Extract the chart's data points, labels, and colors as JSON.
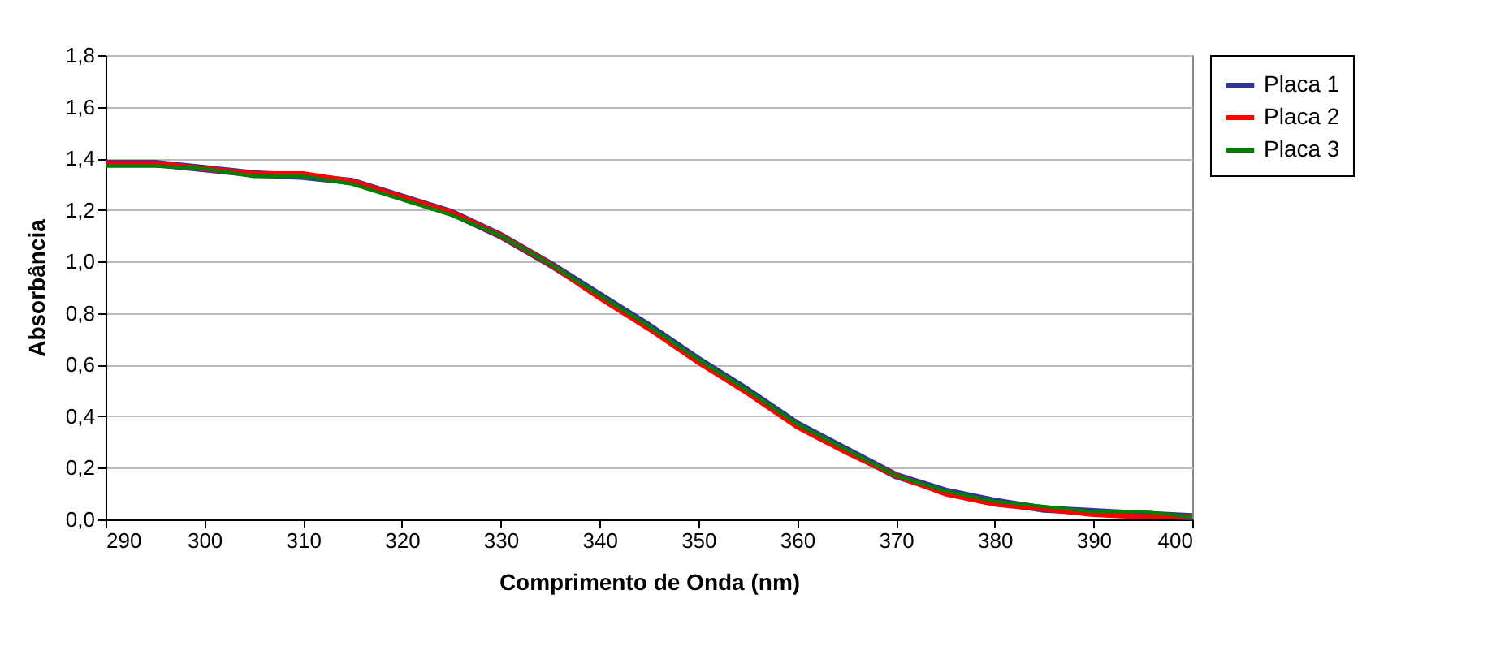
{
  "chart_data": {
    "type": "line",
    "xlabel": "Comprimento de Onda (nm)",
    "ylabel": "Absorbância",
    "x": [
      290,
      295,
      300,
      305,
      310,
      315,
      320,
      325,
      330,
      335,
      340,
      345,
      350,
      355,
      360,
      365,
      370,
      375,
      380,
      385,
      390,
      395,
      400
    ],
    "series": [
      {
        "name": "Placa 1",
        "color": "#333399",
        "values": [
          1.38,
          1.38,
          1.36,
          1.34,
          1.33,
          1.31,
          1.25,
          1.19,
          1.1,
          0.99,
          0.87,
          0.75,
          0.62,
          0.5,
          0.37,
          0.27,
          0.17,
          0.11,
          0.07,
          0.04,
          0.03,
          0.02,
          0.01
        ]
      },
      {
        "name": "Placa 2",
        "color": "#ff0000",
        "values": [
          1.38,
          1.38,
          1.36,
          1.34,
          1.34,
          1.31,
          1.25,
          1.19,
          1.1,
          0.99,
          0.86,
          0.74,
          0.61,
          0.49,
          0.36,
          0.26,
          0.17,
          0.1,
          0.06,
          0.04,
          0.02,
          0.01,
          0.01
        ]
      },
      {
        "name": "Placa 3",
        "color": "#008000",
        "values": [
          1.37,
          1.37,
          1.36,
          1.33,
          1.33,
          1.3,
          1.24,
          1.18,
          1.1,
          0.99,
          0.87,
          0.75,
          0.62,
          0.5,
          0.37,
          0.27,
          0.17,
          0.11,
          0.07,
          0.05,
          0.03,
          0.03,
          0.01
        ]
      }
    ],
    "xlim": [
      290,
      400
    ],
    "xticks": [
      290,
      300,
      310,
      320,
      330,
      340,
      350,
      360,
      370,
      380,
      390,
      400
    ],
    "ylim": [
      0,
      1.8
    ],
    "yticks": [
      {
        "value": 0,
        "label": "0,0"
      },
      {
        "value": 0.2,
        "label": "0,2"
      },
      {
        "value": 0.4,
        "label": "0,4"
      },
      {
        "value": 0.6,
        "label": "0,6"
      },
      {
        "value": 0.8,
        "label": "0,8"
      },
      {
        "value": 1,
        "label": "1,0"
      },
      {
        "value": 1.2,
        "label": "1,2"
      },
      {
        "value": 1.4,
        "label": "1,4"
      },
      {
        "value": 1.6,
        "label": "1,6"
      },
      {
        "value": 1.8,
        "label": "1,8"
      }
    ],
    "grid": "y",
    "legend": "right",
    "marker": "none",
    "line_style": "solid"
  }
}
